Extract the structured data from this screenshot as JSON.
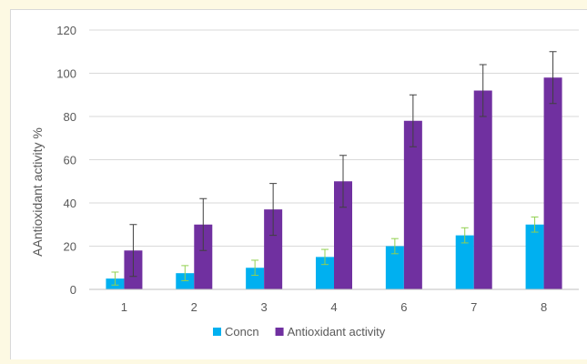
{
  "chart_data": {
    "type": "bar",
    "title": "",
    "xlabel": "",
    "ylabel": "AAntioxidant activity %",
    "ylim": [
      0,
      120
    ],
    "yticks": [
      0,
      20,
      40,
      60,
      80,
      100,
      120
    ],
    "grid": true,
    "legend_position": "bottom",
    "categories": [
      "1",
      "2",
      "3",
      "4",
      "6",
      "7",
      "8"
    ],
    "series": [
      {
        "name": "Concn",
        "color": "#00b0f0",
        "error_bar_color": "#92d050",
        "values": [
          5,
          7.5,
          10,
          15,
          20,
          25,
          30
        ],
        "errors": [
          3,
          3.5,
          3.5,
          3.5,
          3.5,
          3.5,
          3.5
        ]
      },
      {
        "name": "Antioxidant activity",
        "color": "#7030a0",
        "error_bar_color": "#404040",
        "values": [
          18,
          30,
          37,
          50,
          78,
          92,
          98
        ],
        "errors": [
          12,
          12,
          12,
          12,
          12,
          12,
          12
        ]
      }
    ]
  }
}
